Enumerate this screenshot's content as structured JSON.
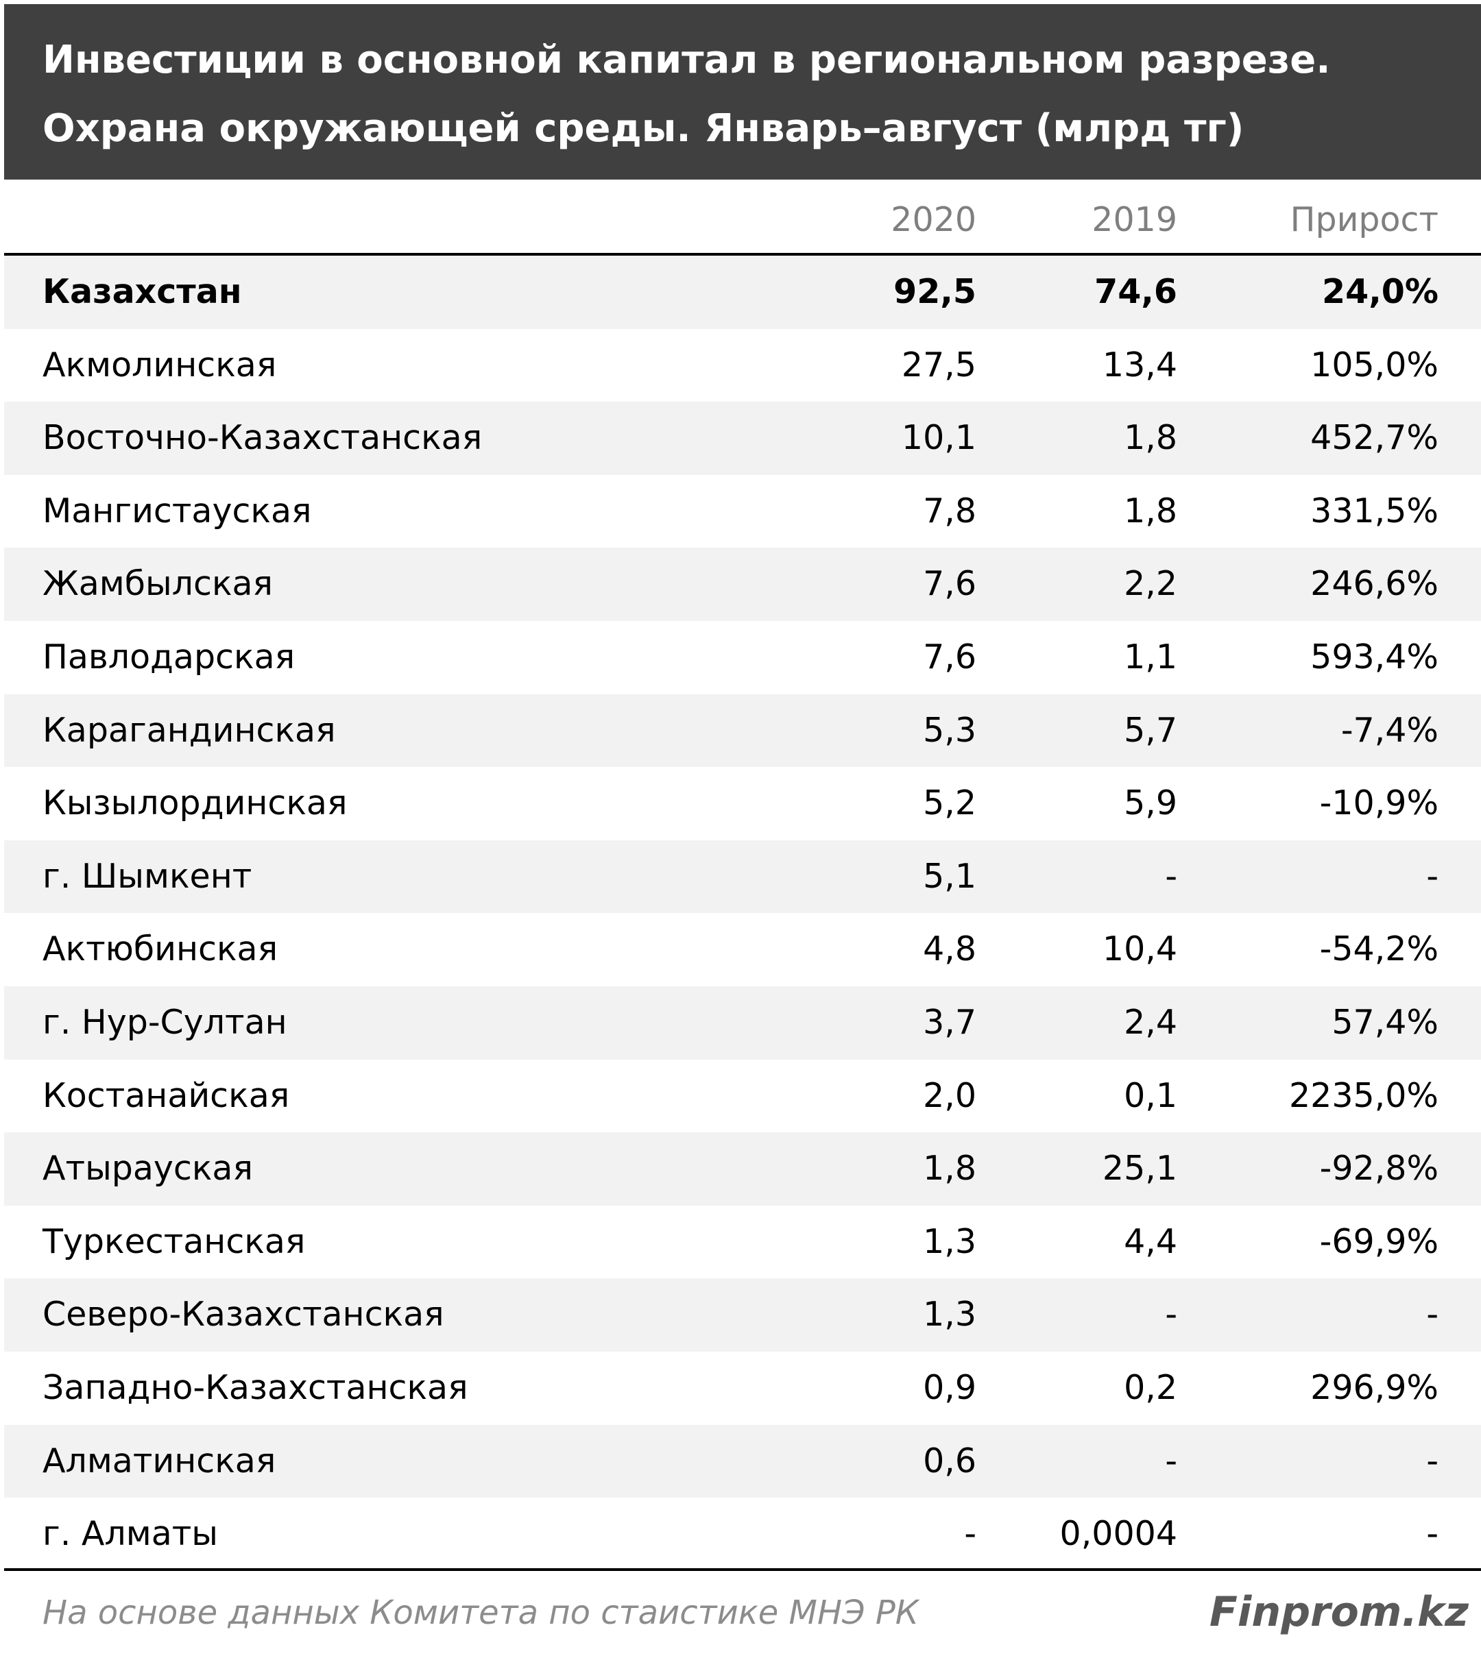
{
  "header": {
    "title": [
      "Инвестиции в основной капитал в региональном разрезе.",
      "Охрана окружающей среды. Январь–август  (млрд тг)"
    ]
  },
  "table": {
    "columns": [
      "2020",
      "2019",
      "Прирост"
    ],
    "rows": [
      [
        "Казахстан",
        "92,5",
        "74,6",
        "24,0%"
      ],
      [
        "Акмолинская",
        "27,5",
        "13,4",
        "105,0%"
      ],
      [
        "Восточно-Казахстанская",
        "10,1",
        "1,8",
        "452,7%"
      ],
      [
        "Мангистауская",
        "7,8",
        "1,8",
        "331,5%"
      ],
      [
        "Жамбылская",
        "7,6",
        "2,2",
        "246,6%"
      ],
      [
        "Павлодарская",
        "7,6",
        "1,1",
        "593,4%"
      ],
      [
        "Карагандинская",
        "5,3",
        "5,7",
        "-7,4%"
      ],
      [
        "Кызылординская",
        "5,2",
        "5,9",
        "-10,9%"
      ],
      [
        "г. Шымкент",
        "5,1",
        "-",
        "-"
      ],
      [
        "Актюбинская",
        "4,8",
        "10,4",
        "-54,2%"
      ],
      [
        "г. Нур-Султан",
        "3,7",
        "2,4",
        "57,4%"
      ],
      [
        "Костанайская",
        "2,0",
        "0,1",
        "2235,0%"
      ],
      [
        "Атырауская",
        "1,8",
        "25,1",
        "-92,8%"
      ],
      [
        "Туркестанская",
        "1,3",
        "4,4",
        "-69,9%"
      ],
      [
        "Северо-Казахстанская",
        "1,3",
        "-",
        "-"
      ],
      [
        "Западно-Казахстанская",
        "0,9",
        "0,2",
        "296,9%"
      ],
      [
        "Алматинская",
        "0,6",
        "-",
        "-"
      ],
      [
        "г. Алматы",
        "-",
        "0,0004",
        "-"
      ]
    ]
  },
  "footer": {
    "source": "На основе данных Комитета по стаистике МНЭ РК",
    "brand": "Finprom.kz"
  }
}
